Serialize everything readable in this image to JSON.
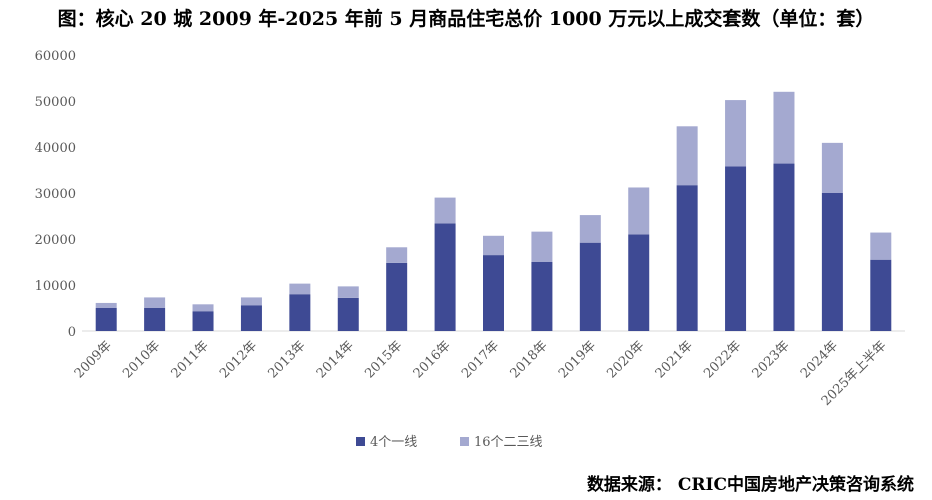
{
  "chart_data": {
    "type": "bar",
    "stacked": true,
    "title": "图：核心 20 城 2009 年-2025 年前 5 月商品住宅总价 1000 万元以上成交套数（单位：套）",
    "categories": [
      "2009年",
      "2010年",
      "2011年",
      "2012年",
      "2013年",
      "2014年",
      "2015年",
      "2016年",
      "2017年",
      "2018年",
      "2019年",
      "2020年",
      "2021年",
      "2022年",
      "2023年",
      "2024年",
      "2025年上半年"
    ],
    "series": [
      {
        "name": "4个一线",
        "color": "#3e4a94",
        "values": [
          5000,
          5000,
          4300,
          5600,
          8000,
          7200,
          14800,
          23400,
          16500,
          15000,
          19200,
          21000,
          31700,
          35800,
          36400,
          30000,
          15500
        ]
      },
      {
        "name": "16个二三线",
        "color": "#a4a9d0",
        "values": [
          1100,
          2300,
          1500,
          1700,
          2300,
          2500,
          3400,
          5600,
          4200,
          6600,
          6000,
          10200,
          12800,
          14400,
          15600,
          10900,
          5900
        ]
      }
    ],
    "y_ticks": [
      "0",
      "10000",
      "20000",
      "30000",
      "40000",
      "50000",
      "60000"
    ],
    "ylim": [
      0,
      60000
    ],
    "grid": false,
    "legend_position": "bottom",
    "source": "数据来源： CRIC中国房地产决策咨询系统"
  }
}
